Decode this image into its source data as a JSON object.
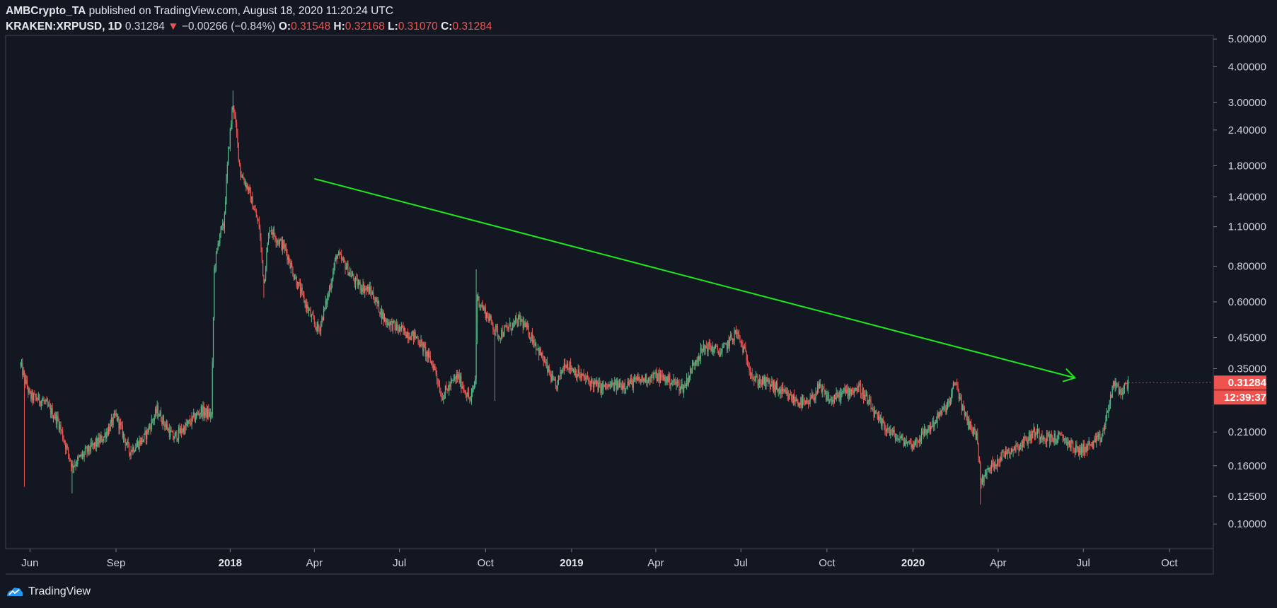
{
  "header": {
    "author": "AMBCrypto_TA",
    "published_text": " published on TradingView.com, August 18, 2020 11:20:24 UTC",
    "symbol": "KRAKEN:XRPUSD, 1D",
    "last": "0.31284",
    "change_icon": "triangle-down-icon",
    "change": "−0.00266 (−0.84%)",
    "o_label": "O:",
    "o_value": "0.31548",
    "h_label": "H:",
    "h_value": "0.32168",
    "l_label": "L:",
    "l_value": "0.31070",
    "c_label": "C:",
    "c_value": "0.31284"
  },
  "footer": {
    "brand": "TradingView",
    "logo_icon": "tradingview-logo-icon"
  },
  "colors": {
    "background": "#131722",
    "up": "#26a69a",
    "up_candle": "#53b987",
    "down": "#ef5350",
    "trendline": "#1ee81e",
    "axis_text": "#d1d4dc",
    "border": "#434651"
  },
  "chart_data": {
    "type": "candlestick",
    "symbol": "KRAKEN:XRPUSD",
    "interval": "1D",
    "y_scale": "log",
    "ylim": [
      0.082,
      5.15
    ],
    "xlim": [
      "2017-05-06",
      "2020-11-17"
    ],
    "yticks": [
      "5.00000",
      "4.00000",
      "3.00000",
      "2.40000",
      "1.80000",
      "1.40000",
      "1.10000",
      "0.80000",
      "0.60000",
      "0.45000",
      "0.35000",
      "0.21000",
      "0.16000",
      "0.12500",
      "0.10000"
    ],
    "xticks": [
      {
        "date": "2017-06-01",
        "label": "Jun",
        "bold": false
      },
      {
        "date": "2017-09-01",
        "label": "Sep",
        "bold": false
      },
      {
        "date": "2018-01-01",
        "label": "2018",
        "bold": true
      },
      {
        "date": "2018-04-01",
        "label": "Apr",
        "bold": false
      },
      {
        "date": "2018-07-01",
        "label": "Jul",
        "bold": false
      },
      {
        "date": "2018-10-01",
        "label": "Oct",
        "bold": false
      },
      {
        "date": "2019-01-01",
        "label": "2019",
        "bold": true
      },
      {
        "date": "2019-04-01",
        "label": "Apr",
        "bold": false
      },
      {
        "date": "2019-07-01",
        "label": "Jul",
        "bold": false
      },
      {
        "date": "2019-10-01",
        "label": "Oct",
        "bold": false
      },
      {
        "date": "2020-01-01",
        "label": "2020",
        "bold": true
      },
      {
        "date": "2020-04-01",
        "label": "Apr",
        "bold": false
      },
      {
        "date": "2020-07-01",
        "label": "Jul",
        "bold": false
      },
      {
        "date": "2020-10-01",
        "label": "Oct",
        "bold": false
      }
    ],
    "price_path": [
      [
        "2017-05-22",
        0.36
      ],
      [
        "2017-06-01",
        0.28
      ],
      [
        "2017-06-15",
        0.27
      ],
      [
        "2017-07-01",
        0.23
      ],
      [
        "2017-07-16",
        0.16
      ],
      [
        "2017-08-01",
        0.18
      ],
      [
        "2017-08-18",
        0.2
      ],
      [
        "2017-09-01",
        0.24
      ],
      [
        "2017-09-15",
        0.18
      ],
      [
        "2017-10-01",
        0.2
      ],
      [
        "2017-10-15",
        0.25
      ],
      [
        "2017-11-01",
        0.2
      ],
      [
        "2017-11-15",
        0.22
      ],
      [
        "2017-12-01",
        0.25
      ],
      [
        "2017-12-12",
        0.24
      ],
      [
        "2017-12-15",
        0.78
      ],
      [
        "2017-12-21",
        1.05
      ],
      [
        "2017-12-25",
        1.1
      ],
      [
        "2017-12-30",
        2.0
      ],
      [
        "2018-01-04",
        3.0
      ],
      [
        "2018-01-08",
        2.3
      ],
      [
        "2018-01-12",
        1.7
      ],
      [
        "2018-01-20",
        1.5
      ],
      [
        "2018-02-01",
        1.1
      ],
      [
        "2018-02-06",
        0.7
      ],
      [
        "2018-02-12",
        1.1
      ],
      [
        "2018-02-20",
        1.0
      ],
      [
        "2018-03-01",
        0.92
      ],
      [
        "2018-03-10",
        0.75
      ],
      [
        "2018-03-20",
        0.62
      ],
      [
        "2018-04-01",
        0.5
      ],
      [
        "2018-04-06",
        0.48
      ],
      [
        "2018-04-15",
        0.62
      ],
      [
        "2018-04-25",
        0.88
      ],
      [
        "2018-05-05",
        0.8
      ],
      [
        "2018-05-15",
        0.7
      ],
      [
        "2018-06-01",
        0.65
      ],
      [
        "2018-06-15",
        0.52
      ],
      [
        "2018-07-01",
        0.48
      ],
      [
        "2018-07-20",
        0.45
      ],
      [
        "2018-08-08",
        0.35
      ],
      [
        "2018-08-15",
        0.28
      ],
      [
        "2018-09-01",
        0.33
      ],
      [
        "2018-09-15",
        0.27
      ],
      [
        "2018-09-20",
        0.32
      ],
      [
        "2018-09-22",
        0.62
      ],
      [
        "2018-10-01",
        0.55
      ],
      [
        "2018-10-15",
        0.46
      ],
      [
        "2018-11-07",
        0.52
      ],
      [
        "2018-11-20",
        0.45
      ],
      [
        "2018-12-01",
        0.38
      ],
      [
        "2018-12-15",
        0.3
      ],
      [
        "2018-12-25",
        0.37
      ],
      [
        "2019-01-10",
        0.33
      ],
      [
        "2019-02-01",
        0.3
      ],
      [
        "2019-03-01",
        0.31
      ],
      [
        "2019-04-01",
        0.33
      ],
      [
        "2019-04-15",
        0.32
      ],
      [
        "2019-05-01",
        0.3
      ],
      [
        "2019-05-14",
        0.38
      ],
      [
        "2019-05-25",
        0.42
      ],
      [
        "2019-06-10",
        0.4
      ],
      [
        "2019-06-26",
        0.47
      ],
      [
        "2019-07-05",
        0.4
      ],
      [
        "2019-07-15",
        0.32
      ],
      [
        "2019-08-01",
        0.31
      ],
      [
        "2019-08-20",
        0.28
      ],
      [
        "2019-09-10",
        0.26
      ],
      [
        "2019-09-22",
        0.3
      ],
      [
        "2019-10-05",
        0.27
      ],
      [
        "2019-10-20",
        0.29
      ],
      [
        "2019-11-05",
        0.3
      ],
      [
        "2019-11-25",
        0.23
      ],
      [
        "2019-12-15",
        0.2
      ],
      [
        "2020-01-01",
        0.19
      ],
      [
        "2020-01-20",
        0.22
      ],
      [
        "2020-02-10",
        0.27
      ],
      [
        "2020-02-15",
        0.32
      ],
      [
        "2020-02-25",
        0.24
      ],
      [
        "2020-03-10",
        0.2
      ],
      [
        "2020-03-13",
        0.14
      ],
      [
        "2020-03-25",
        0.16
      ],
      [
        "2020-04-10",
        0.18
      ],
      [
        "2020-04-25",
        0.19
      ],
      [
        "2020-05-10",
        0.21
      ],
      [
        "2020-05-25",
        0.2
      ],
      [
        "2020-06-10",
        0.2
      ],
      [
        "2020-06-25",
        0.18
      ],
      [
        "2020-07-10",
        0.19
      ],
      [
        "2020-07-20",
        0.2
      ],
      [
        "2020-07-25",
        0.23
      ],
      [
        "2020-08-02",
        0.31
      ],
      [
        "2020-08-10",
        0.29
      ],
      [
        "2020-08-18",
        0.31284
      ]
    ],
    "spikes": [
      {
        "date": "2017-05-26",
        "low": 0.135
      },
      {
        "date": "2017-07-16",
        "low": 0.128
      },
      {
        "date": "2018-01-04",
        "high": 3.3
      },
      {
        "date": "2018-02-06",
        "low": 0.62
      },
      {
        "date": "2018-09-21",
        "high": 0.78
      },
      {
        "date": "2018-10-11",
        "low": 0.27
      },
      {
        "date": "2020-03-13",
        "low": 0.117
      }
    ],
    "trendline": {
      "start": {
        "date": "2018-04-01",
        "price": 1.62
      },
      "end": {
        "date": "2020-06-22",
        "price": 0.325
      },
      "arrow": true
    },
    "last_price_label": "0.31284",
    "countdown_label": "12:39:37"
  }
}
